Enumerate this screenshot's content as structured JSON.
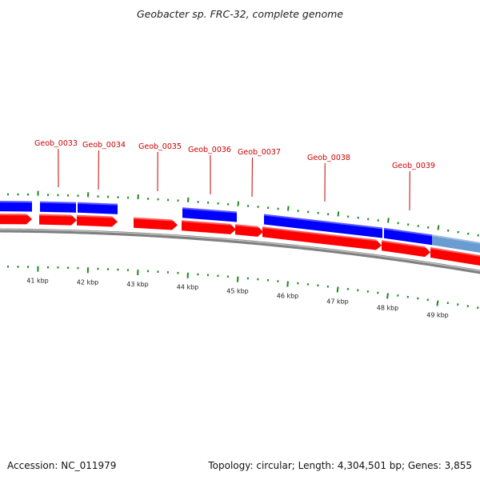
{
  "title": "Geobacter sp. FRC-32, complete genome",
  "footer": {
    "accession": "Accession: NC_011979",
    "topology": "Topology: circular; Length: 4,304,501 bp; Genes: 3,855"
  },
  "colors": {
    "forward_gene": "#0000ff",
    "reverse_gene": "#ff0000",
    "highlight_gene": "#6a9bd1",
    "tick": "#1a8a1a",
    "backbone": "#808080",
    "label": "#cc0000"
  },
  "kbp_labels": [
    "41 kbp",
    "42 kbp",
    "43 kbp",
    "44 kbp",
    "45 kbp",
    "46 kbp",
    "47 kbp",
    "48 kbp",
    "49 kbp"
  ],
  "gene_labels": [
    "Geob_0033",
    "Geob_0034",
    "Geob_0035",
    "Geob_0036",
    "Geob_0037",
    "Geob_0038",
    "Geob_0039"
  ]
}
